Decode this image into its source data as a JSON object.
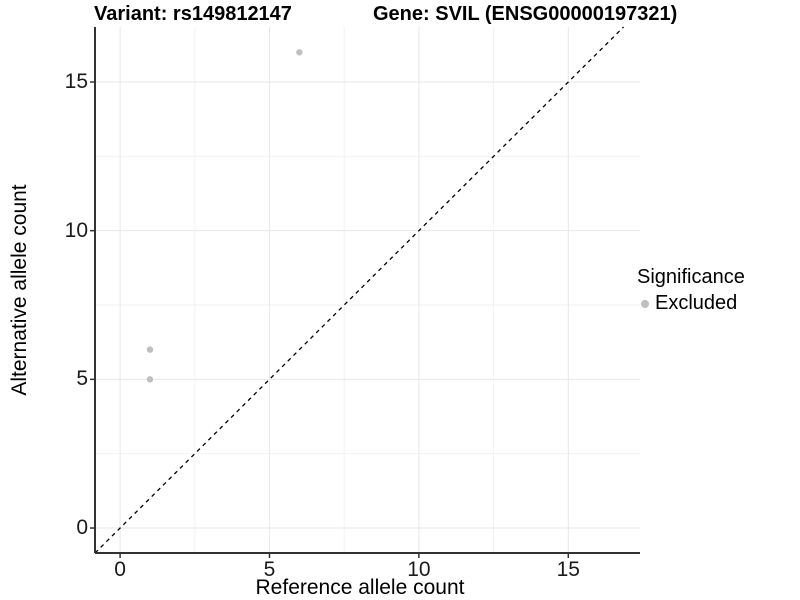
{
  "chart_data": {
    "type": "scatter",
    "titles": {
      "left": "Variant: rs149812147",
      "right": "Gene: SVIL (ENSG00000197321)"
    },
    "xlabel": "Reference allele count",
    "ylabel": "Alternative allele count",
    "xlim": [
      -0.84,
      17.4
    ],
    "ylim": [
      -0.84,
      16.85
    ],
    "x_ticks": [
      0,
      5,
      10,
      15
    ],
    "y_ticks": [
      0,
      5,
      10,
      15
    ],
    "x_minor_ticks": [
      2.5,
      7.5,
      12.5
    ],
    "y_minor_ticks": [
      2.5,
      7.5,
      12.5
    ],
    "grid": true,
    "identity_line": {
      "slope": 1,
      "intercept": 0,
      "style": "dashed",
      "color": "#000000"
    },
    "series": [
      {
        "name": "Excluded",
        "color": "#bfbfbf",
        "points": [
          [
            1,
            5
          ],
          [
            1,
            6
          ],
          [
            6,
            16
          ]
        ]
      }
    ],
    "legend": {
      "title": "Significance",
      "position": "right",
      "entries": [
        {
          "label": "Excluded",
          "color": "#bfbfbf",
          "marker": "circle-icon"
        }
      ]
    },
    "colors": {
      "grid_major": "#e7e7e7",
      "grid_minor": "#f2f2f2",
      "axis_line": "#333333",
      "tick_mark": "#333333"
    }
  }
}
